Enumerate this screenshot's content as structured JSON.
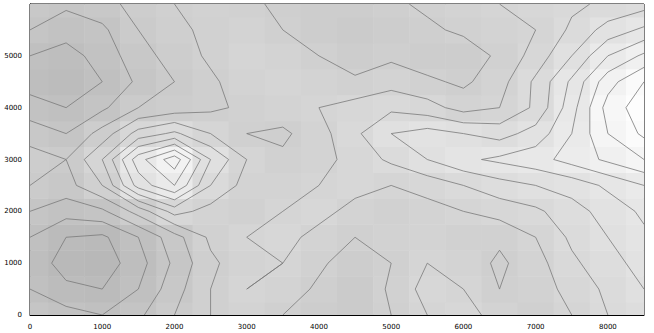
{
  "chart_data": {
    "type": "contour",
    "x": [
      0,
      500,
      1000,
      1500,
      2000,
      2500,
      3000,
      3500,
      4000,
      4500,
      5000,
      5500,
      6000,
      6500,
      7000,
      7500,
      8000,
      8500
    ],
    "y": [
      0,
      500,
      1000,
      1500,
      2000,
      2500,
      3000,
      3500,
      4000,
      4500,
      5000,
      5500,
      6000
    ],
    "z": [
      [
        45,
        42,
        40,
        44,
        50,
        55,
        58,
        55,
        52,
        50,
        55,
        60,
        62,
        58,
        55,
        60,
        65,
        68
      ],
      [
        40,
        36,
        35,
        40,
        48,
        55,
        60,
        58,
        54,
        50,
        56,
        62,
        60,
        55,
        57,
        62,
        66,
        70
      ],
      [
        38,
        33,
        32,
        38,
        46,
        54,
        58,
        60,
        56,
        52,
        55,
        60,
        58,
        54,
        58,
        64,
        68,
        72
      ],
      [
        40,
        35,
        34,
        40,
        48,
        56,
        60,
        62,
        58,
        55,
        57,
        58,
        56,
        56,
        60,
        66,
        70,
        74
      ],
      [
        45,
        42,
        44,
        52,
        62,
        58,
        56,
        60,
        62,
        58,
        56,
        58,
        60,
        62,
        64,
        68,
        72,
        76
      ],
      [
        50,
        48,
        55,
        72,
        80,
        65,
        58,
        58,
        60,
        62,
        60,
        62,
        65,
        68,
        70,
        72,
        76,
        80
      ],
      [
        52,
        50,
        60,
        78,
        88,
        70,
        60,
        56,
        58,
        62,
        66,
        70,
        74,
        76,
        78,
        82,
        86,
        90
      ],
      [
        48,
        45,
        52,
        62,
        66,
        60,
        55,
        54,
        58,
        64,
        70,
        72,
        70,
        68,
        72,
        80,
        90,
        96
      ],
      [
        42,
        40,
        44,
        50,
        52,
        54,
        56,
        58,
        60,
        62,
        64,
        62,
        58,
        60,
        66,
        78,
        92,
        98
      ],
      [
        38,
        36,
        40,
        46,
        50,
        54,
        58,
        60,
        58,
        56,
        58,
        56,
        54,
        58,
        66,
        76,
        88,
        95
      ],
      [
        40,
        38,
        42,
        48,
        52,
        56,
        60,
        58,
        55,
        52,
        54,
        52,
        52,
        56,
        62,
        70,
        80,
        86
      ],
      [
        45,
        42,
        44,
        50,
        54,
        56,
        58,
        55,
        52,
        50,
        52,
        54,
        56,
        58,
        60,
        66,
        72,
        76
      ],
      [
        48,
        46,
        48,
        52,
        55,
        57,
        56,
        54,
        52,
        52,
        54,
        56,
        58,
        60,
        62,
        64,
        66,
        68
      ]
    ],
    "levels": [
      35,
      40,
      45,
      50,
      55,
      60,
      65,
      70,
      75,
      80,
      85,
      90,
      95
    ],
    "zlim": [
      0,
      100
    ],
    "color": "#7a7a7a",
    "xlim": [
      0,
      8500
    ],
    "xticks": [
      0,
      1000,
      2000,
      3000,
      4000,
      5000,
      6000,
      7000,
      8000
    ],
    "ylim": [
      0,
      6000
    ],
    "yticks": [
      0,
      1000,
      2000,
      3000,
      4000,
      5000
    ]
  }
}
